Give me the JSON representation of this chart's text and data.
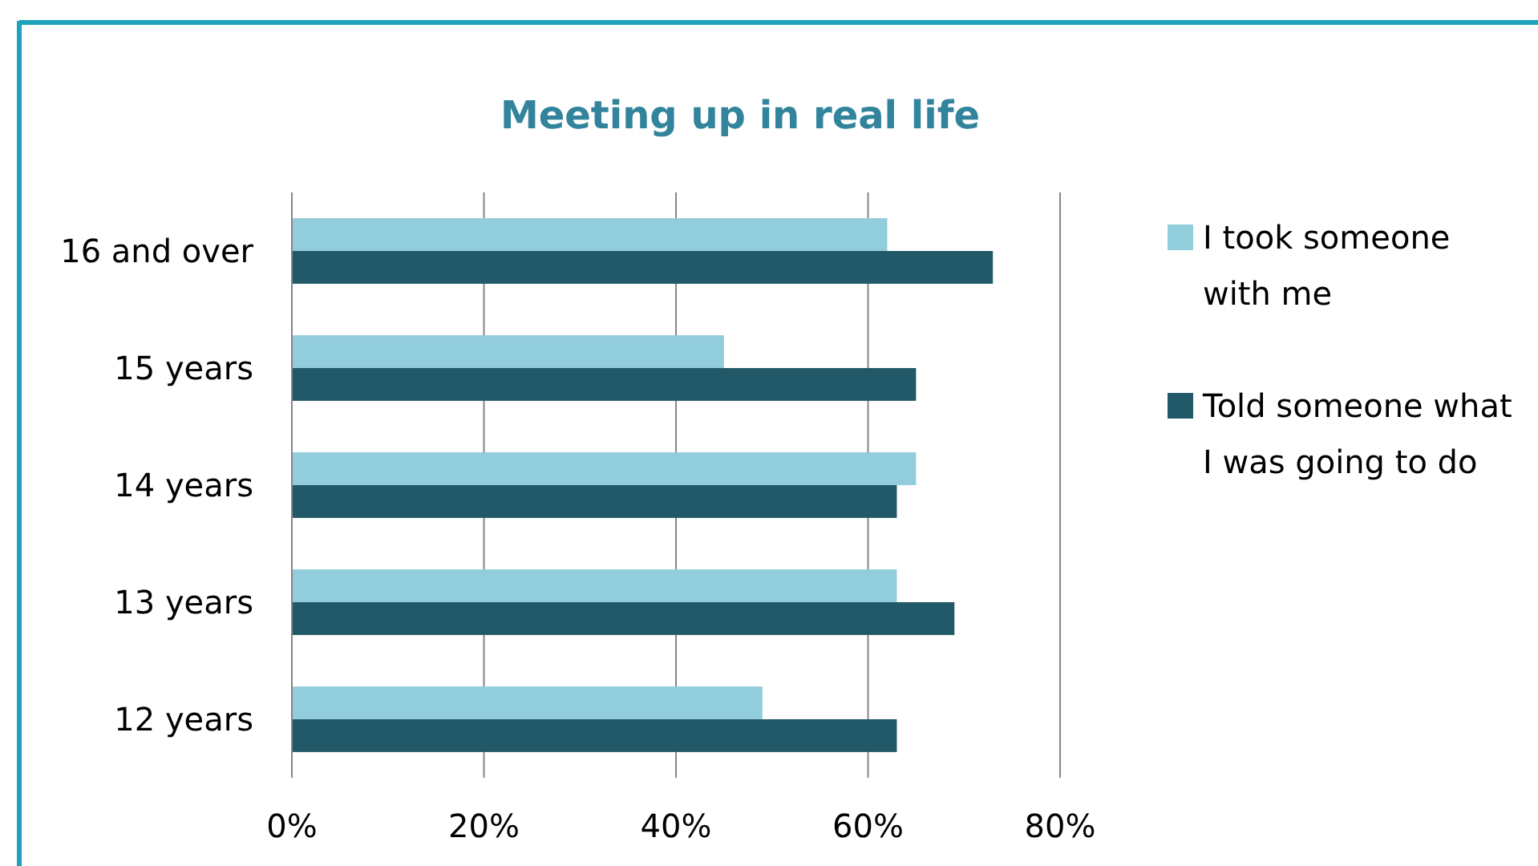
{
  "chart_data": {
    "type": "bar",
    "orientation": "horizontal",
    "title": "Meeting up in real life",
    "categories": [
      "16 and over",
      "15 years",
      "14 years",
      "13 years",
      "12 years"
    ],
    "series": [
      {
        "name": "I took someone with me",
        "color": "#92cddc",
        "values": [
          62,
          45,
          65,
          63,
          49
        ]
      },
      {
        "name": "Told someone what I was going to do",
        "color": "#215968",
        "values": [
          73,
          65,
          63,
          69,
          63
        ]
      }
    ],
    "xlim": [
      0,
      80
    ],
    "xticks": [
      {
        "value": 0,
        "label": "0%"
      },
      {
        "value": 20,
        "label": "20%"
      },
      {
        "value": 40,
        "label": "40%"
      },
      {
        "value": 60,
        "label": "60%"
      },
      {
        "value": 80,
        "label": "80%"
      }
    ],
    "grid": "x",
    "legend": "right"
  }
}
